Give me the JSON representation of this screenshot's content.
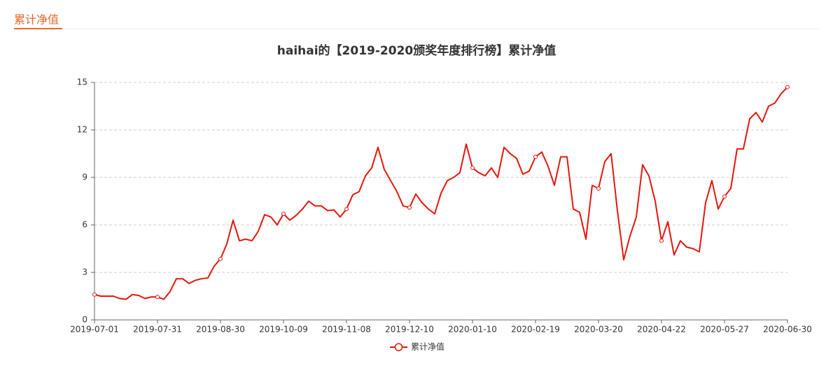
{
  "tab": "累计净值",
  "chart_data": {
    "type": "line",
    "title": "haihai的【2019-2020颁奖年度排行榜】累计净值",
    "categories": [
      "2019-07-01",
      null,
      null,
      null,
      null,
      null,
      null,
      null,
      null,
      null,
      "2019-07-31",
      null,
      null,
      null,
      null,
      null,
      null,
      null,
      null,
      null,
      "2019-08-30",
      null,
      null,
      null,
      null,
      null,
      null,
      null,
      null,
      null,
      "2019-10-09",
      null,
      null,
      null,
      null,
      null,
      null,
      null,
      null,
      null,
      "2019-11-08",
      null,
      null,
      null,
      null,
      null,
      null,
      null,
      null,
      null,
      "2019-12-10",
      null,
      null,
      null,
      null,
      null,
      null,
      null,
      null,
      null,
      "2020-01-10",
      null,
      null,
      null,
      null,
      null,
      null,
      null,
      null,
      null,
      "2020-02-19",
      null,
      null,
      null,
      null,
      null,
      null,
      null,
      null,
      null,
      "2020-03-20",
      null,
      null,
      null,
      null,
      null,
      null,
      null,
      null,
      null,
      "2020-04-22",
      null,
      null,
      null,
      null,
      null,
      null,
      null,
      null,
      null,
      "2020-05-27",
      null,
      null,
      null,
      null,
      null,
      null,
      null,
      null,
      null,
      "2020-06-30"
    ],
    "series": [
      {
        "name": "累计净值",
        "color": "#e3170d",
        "values": [
          1.6,
          1.5,
          1.5,
          1.5,
          1.35,
          1.3,
          1.6,
          1.55,
          1.35,
          1.45,
          1.45,
          1.3,
          1.8,
          2.6,
          2.6,
          2.3,
          2.5,
          2.6,
          2.65,
          3.4,
          3.85,
          4.8,
          6.3,
          5.0,
          5.1,
          5.0,
          5.6,
          6.65,
          6.5,
          6.0,
          6.7,
          6.3,
          6.6,
          7.0,
          7.5,
          7.2,
          7.2,
          6.9,
          6.95,
          6.5,
          7.0,
          7.9,
          8.1,
          9.1,
          9.6,
          10.9,
          9.5,
          8.8,
          8.1,
          7.2,
          7.1,
          7.95,
          7.4,
          7.0,
          6.7,
          8.0,
          8.8,
          9.0,
          9.3,
          11.1,
          9.6,
          9.3,
          9.1,
          9.6,
          9.0,
          10.9,
          10.5,
          10.2,
          9.2,
          9.4,
          10.3,
          10.6,
          9.7,
          8.5,
          10.3,
          10.3,
          7.0,
          6.8,
          5.1,
          8.5,
          8.3,
          10.0,
          10.5,
          6.9,
          3.8,
          5.3,
          6.5,
          9.8,
          9.1,
          7.5,
          5.0,
          6.2,
          4.1,
          5.0,
          4.6,
          4.5,
          4.3,
          7.4,
          8.8,
          7.0,
          7.8,
          8.3,
          10.8,
          10.8,
          12.7,
          13.1,
          12.5,
          13.5,
          13.7,
          14.3,
          14.7
        ]
      }
    ],
    "ylim": [
      0,
      15
    ],
    "yticks": [
      0,
      3,
      6,
      9,
      12,
      15
    ],
    "grid": true,
    "legend": "bottom"
  }
}
